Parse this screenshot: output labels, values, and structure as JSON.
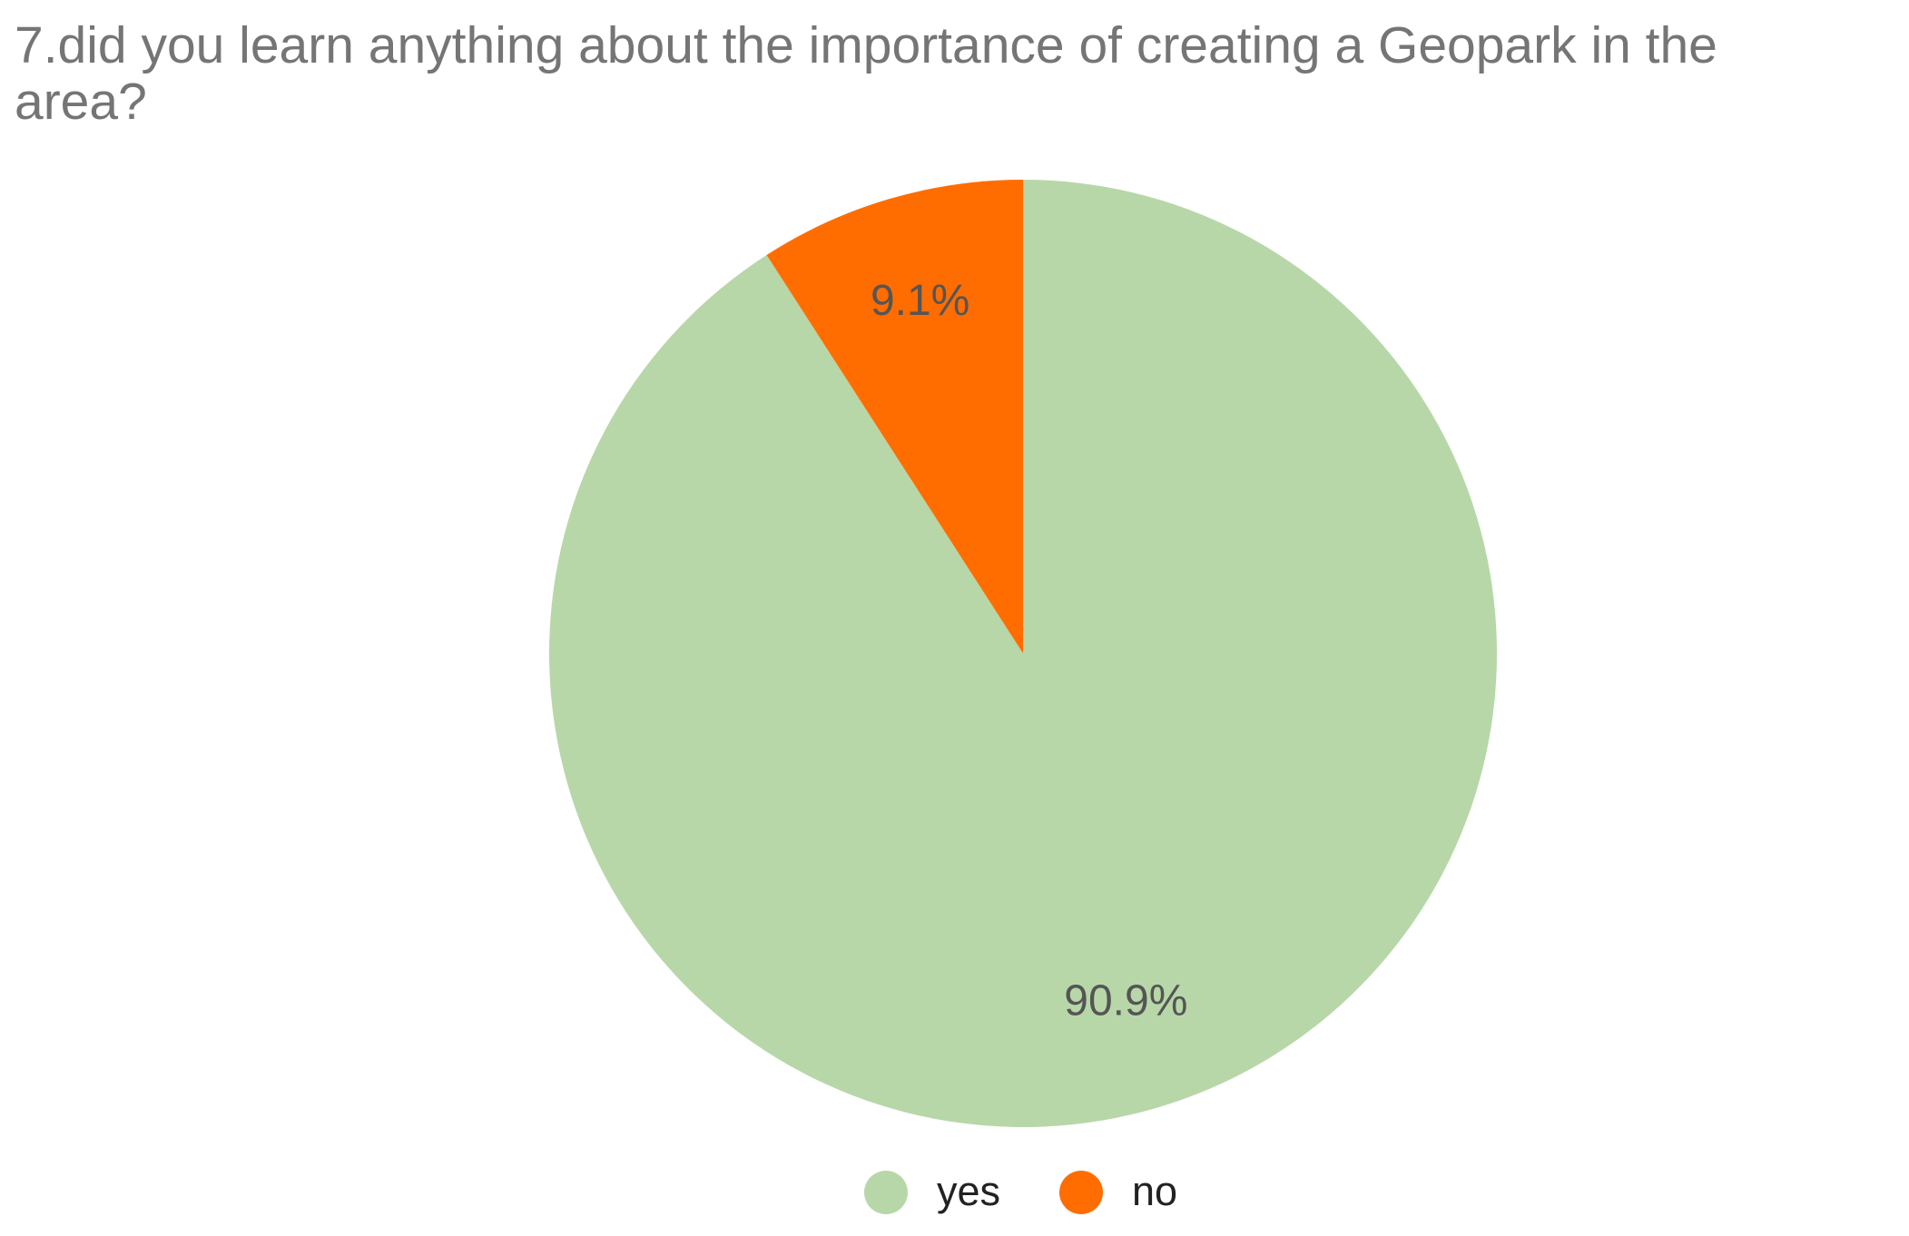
{
  "chart_data": {
    "type": "pie",
    "title": "7.did you learn anything about the importance of creating a Geopark in the area?",
    "title_lines": [
      "7.did you learn anything about the importance of creating a Geopark in the",
      "area?"
    ],
    "categories": [
      "yes",
      "no"
    ],
    "values": [
      90.9,
      9.1
    ],
    "value_labels": [
      "90.9%",
      "9.1%"
    ],
    "colors": [
      "#b7d7a8",
      "#ff6d01"
    ],
    "legend": "bottom"
  }
}
